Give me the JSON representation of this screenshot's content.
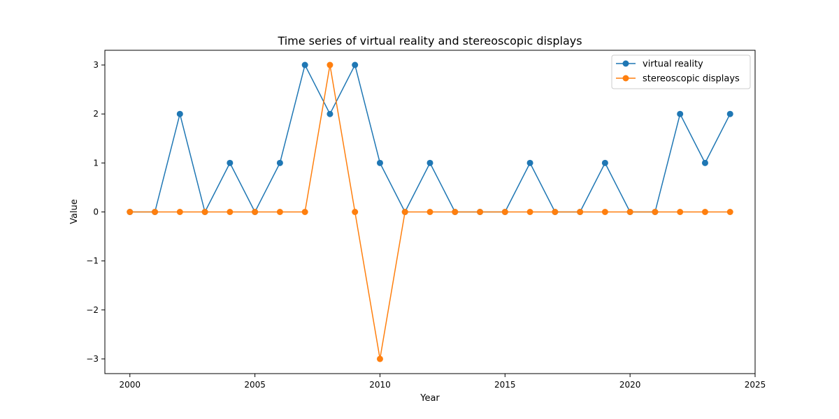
{
  "chart_data": {
    "type": "line",
    "title": "Time series of virtual reality and stereoscopic displays",
    "xlabel": "Year",
    "ylabel": "Value",
    "xlim": [
      1999,
      2025
    ],
    "ylim": [
      -3.3,
      3.3
    ],
    "xticks": [
      2000,
      2005,
      2010,
      2015,
      2020,
      2025
    ],
    "yticks": [
      -3,
      -2,
      -1,
      0,
      1,
      2,
      3
    ],
    "x": [
      2000,
      2001,
      2002,
      2003,
      2004,
      2005,
      2006,
      2007,
      2008,
      2009,
      2010,
      2011,
      2012,
      2013,
      2014,
      2015,
      2016,
      2017,
      2018,
      2019,
      2020,
      2021,
      2022,
      2023,
      2024
    ],
    "series": [
      {
        "name": "virtual reality",
        "color": "#1f77b4",
        "values": [
          0,
          0,
          2,
          0,
          1,
          0,
          1,
          3,
          2,
          3,
          1,
          0,
          1,
          0,
          0,
          0,
          1,
          0,
          0,
          1,
          0,
          0,
          2,
          1,
          2
        ]
      },
      {
        "name": "stereoscopic displays",
        "color": "#ff7f0e",
        "values": [
          0,
          0,
          0,
          0,
          0,
          0,
          0,
          0,
          3,
          0,
          -3,
          0,
          0,
          0,
          0,
          0,
          0,
          0,
          0,
          0,
          0,
          0,
          0,
          0,
          0
        ]
      }
    ],
    "grid": false,
    "legend": "top-right"
  }
}
